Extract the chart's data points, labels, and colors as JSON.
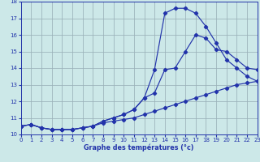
{
  "bg_color": "#cce8e8",
  "grid_color": "#9ab0b8",
  "line_color": "#2233aa",
  "xlabel": "Graphe des températures (°c)",
  "xlim": [
    0,
    23
  ],
  "ylim": [
    10,
    18
  ],
  "xticks": [
    0,
    1,
    2,
    3,
    4,
    5,
    6,
    7,
    8,
    9,
    10,
    11,
    12,
    13,
    14,
    15,
    16,
    17,
    18,
    19,
    20,
    21,
    22,
    23
  ],
  "yticks": [
    10,
    11,
    12,
    13,
    14,
    15,
    16,
    17,
    18
  ],
  "line1_y": [
    10.5,
    10.6,
    10.4,
    10.3,
    10.3,
    10.3,
    10.4,
    10.5,
    10.7,
    10.8,
    10.9,
    11.0,
    11.2,
    11.4,
    11.6,
    11.8,
    12.0,
    12.2,
    12.4,
    12.6,
    12.8,
    13.0,
    13.1,
    13.2
  ],
  "line2_y": [
    10.5,
    10.6,
    10.4,
    10.3,
    10.3,
    10.3,
    10.4,
    10.5,
    10.8,
    11.0,
    11.2,
    11.5,
    12.2,
    12.5,
    13.9,
    14.0,
    15.0,
    16.0,
    15.8,
    15.1,
    15.0,
    14.5,
    14.0,
    13.9
  ],
  "line3_y": [
    10.5,
    10.6,
    10.4,
    10.3,
    10.3,
    10.3,
    10.4,
    10.5,
    10.8,
    11.0,
    11.2,
    11.5,
    12.2,
    13.9,
    17.3,
    17.6,
    17.6,
    17.3,
    16.5,
    15.5,
    14.5,
    14.0,
    13.5,
    13.2
  ]
}
